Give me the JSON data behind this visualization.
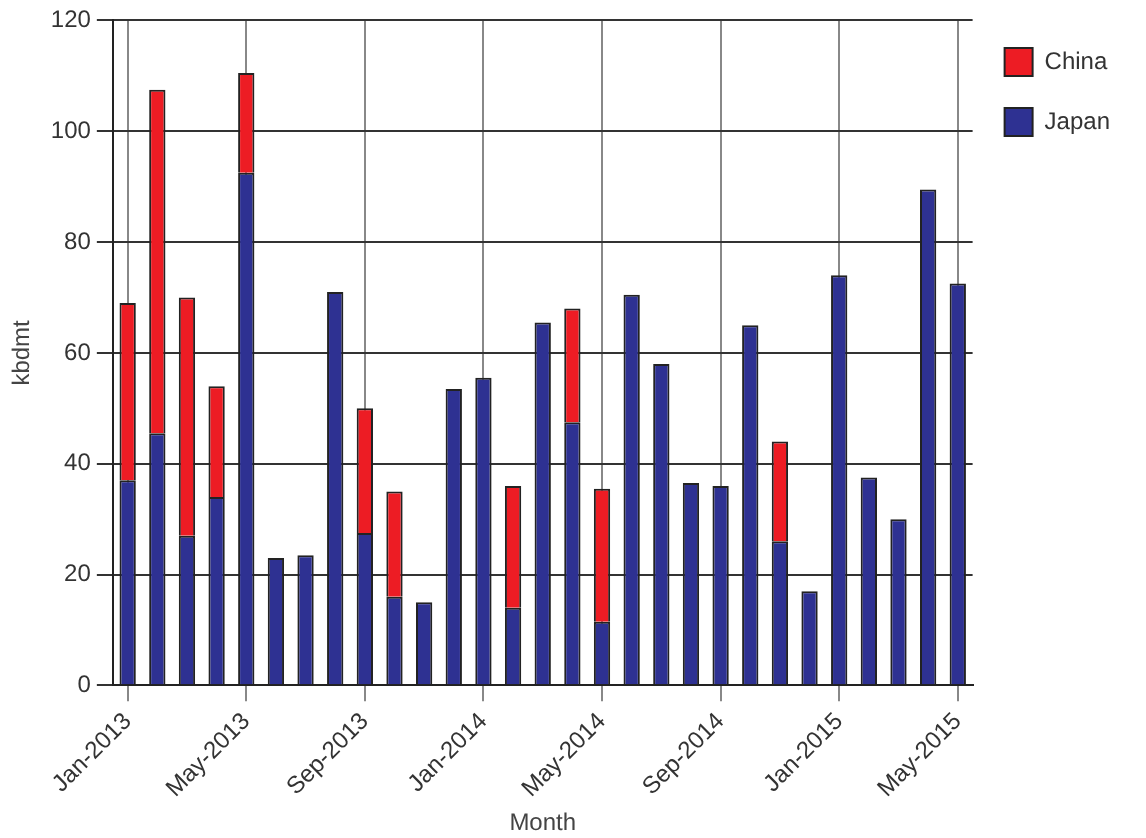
{
  "chart_data": {
    "type": "bar",
    "stacked": true,
    "xlabel": "Month",
    "ylabel": "kbdmt",
    "categories": [
      "Jan-2013",
      null,
      null,
      null,
      "May-2013",
      null,
      null,
      null,
      "Sep-2013",
      null,
      null,
      null,
      "Jan-2014",
      null,
      null,
      null,
      "May-2014",
      null,
      null,
      null,
      "Sep-2014",
      null,
      null,
      null,
      "Jan-2015",
      null,
      null,
      null,
      "May-2015"
    ],
    "series": [
      {
        "name": "Japan",
        "color": "#2e3192",
        "values": [
          37,
          45.5,
          27,
          34,
          92.5,
          23,
          23.5,
          71,
          27.5,
          16,
          15,
          53.5,
          55.5,
          14,
          65.5,
          47.5,
          11.5,
          70.5,
          58,
          36.5,
          36,
          65,
          26,
          17,
          74,
          37.5,
          30,
          89.5,
          72.5
        ]
      },
      {
        "name": "China",
        "color": "#ed1c24",
        "values": [
          32,
          62,
          43,
          20,
          18,
          null,
          null,
          null,
          22.5,
          19,
          null,
          null,
          null,
          22,
          null,
          20.5,
          24,
          null,
          null,
          null,
          null,
          null,
          18,
          null,
          null,
          null,
          null,
          null,
          null
        ]
      }
    ],
    "ylim": [
      0,
      120
    ],
    "yticks": [
      0,
      20,
      40,
      60,
      80,
      100,
      120
    ],
    "grid": true,
    "legend": "top right"
  }
}
